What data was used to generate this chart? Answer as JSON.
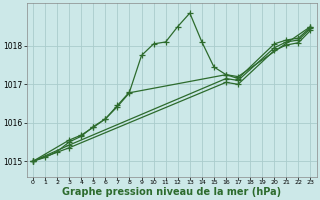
{
  "background_color": "#cce8e8",
  "grid_color": "#aacccc",
  "line_color": "#2d6b2d",
  "xlabel": "Graphe pression niveau de la mer (hPa)",
  "xlabel_fontsize": 7,
  "ylim": [
    1014.6,
    1019.1
  ],
  "xlim": [
    -0.5,
    23.5
  ],
  "yticks": [
    1015,
    1016,
    1017,
    1018
  ],
  "xticks": [
    0,
    1,
    2,
    3,
    4,
    5,
    6,
    7,
    8,
    9,
    10,
    11,
    12,
    13,
    14,
    15,
    16,
    17,
    18,
    19,
    20,
    21,
    22,
    23
  ],
  "series": [
    {
      "x": [
        0,
        1,
        2,
        3,
        4,
        5,
        6,
        7,
        8,
        9,
        10,
        11,
        12,
        13,
        14,
        15,
        16,
        17,
        23
      ],
      "y": [
        1015.0,
        1015.1,
        1015.25,
        1015.5,
        1015.65,
        1015.9,
        1016.1,
        1016.45,
        1016.8,
        1017.75,
        1018.05,
        1018.1,
        1018.5,
        1018.85,
        1018.1,
        1017.45,
        1017.25,
        1017.2,
        1018.5
      ],
      "marker": "+",
      "markersize": 4,
      "linewidth": 0.9,
      "linestyle": "-"
    },
    {
      "x": [
        0,
        3,
        4,
        5,
        6,
        7,
        8,
        16,
        17,
        20,
        21,
        22,
        23
      ],
      "y": [
        1015.0,
        1015.55,
        1015.68,
        1015.88,
        1016.1,
        1016.42,
        1016.78,
        1017.25,
        1017.15,
        1018.05,
        1018.15,
        1018.2,
        1018.48
      ],
      "marker": "+",
      "markersize": 4,
      "linewidth": 0.9,
      "linestyle": "-"
    },
    {
      "x": [
        0,
        3,
        16,
        17,
        20,
        21,
        22,
        23
      ],
      "y": [
        1015.0,
        1015.42,
        1017.15,
        1017.1,
        1017.95,
        1018.1,
        1018.15,
        1018.45
      ],
      "marker": "+",
      "markersize": 4,
      "linewidth": 0.9,
      "linestyle": "-"
    },
    {
      "x": [
        0,
        3,
        16,
        17,
        20,
        21,
        22,
        23
      ],
      "y": [
        1015.0,
        1015.35,
        1017.05,
        1017.0,
        1017.88,
        1018.02,
        1018.08,
        1018.4
      ],
      "marker": "+",
      "markersize": 4,
      "linewidth": 0.9,
      "linestyle": "-"
    }
  ]
}
